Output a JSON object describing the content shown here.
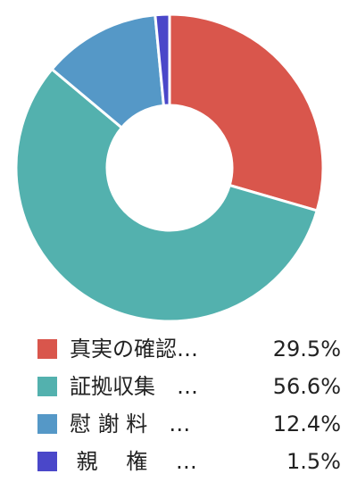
{
  "chart_data": {
    "type": "pie",
    "donut": true,
    "categories": [
      "真実の確認",
      "証拠収集",
      "慰謝料",
      "親権"
    ],
    "values": [
      29.5,
      56.6,
      12.4,
      1.5
    ],
    "unit": "%",
    "colors": [
      "#d9564c",
      "#53b1ae",
      "#5598c7",
      "#4a47c9"
    ],
    "legend_position": "bottom"
  },
  "legend": {
    "items": [
      {
        "label": "真実の確認…",
        "value": "29.5%"
      },
      {
        "label": "証拠収集　…",
        "value": "56.6%"
      },
      {
        "label": "慰 謝 料　…",
        "value": "12.4%"
      },
      {
        "label": " 親 　権　 …",
        "value": "1.5%"
      }
    ]
  }
}
